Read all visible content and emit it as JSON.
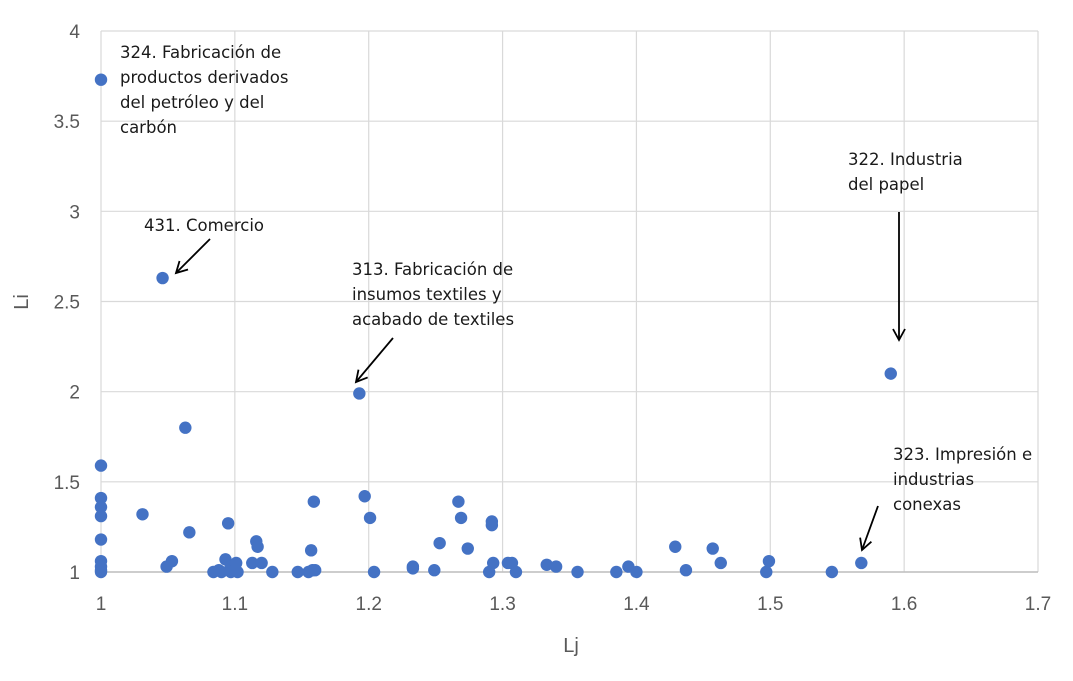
{
  "chart_data": {
    "type": "scatter",
    "title": "",
    "xlabel": "Lj",
    "ylabel": "Li",
    "xlim": [
      1,
      1.7
    ],
    "ylim": [
      1,
      4
    ],
    "xticks": [
      "1",
      "1.1",
      "1.2",
      "1.3",
      "1.4",
      "1.5",
      "1.6",
      "1.7"
    ],
    "yticks": [
      "1",
      "1.5",
      "2",
      "2.5",
      "3",
      "3.5",
      "4"
    ],
    "grid": true,
    "marker_color": "#4472C4",
    "points": [
      {
        "x": 1.0,
        "y": 3.73
      },
      {
        "x": 1.046,
        "y": 2.63
      },
      {
        "x": 1.063,
        "y": 1.8
      },
      {
        "x": 1.193,
        "y": 1.99
      },
      {
        "x": 1.59,
        "y": 2.1
      },
      {
        "x": 1.0,
        "y": 1.59
      },
      {
        "x": 1.0,
        "y": 1.41
      },
      {
        "x": 1.0,
        "y": 1.36
      },
      {
        "x": 1.0,
        "y": 1.31
      },
      {
        "x": 1.0,
        "y": 1.18
      },
      {
        "x": 1.0,
        "y": 1.06
      },
      {
        "x": 1.0,
        "y": 1.03
      },
      {
        "x": 1.0,
        "y": 1.01
      },
      {
        "x": 1.0,
        "y": 1.0
      },
      {
        "x": 1.031,
        "y": 1.32
      },
      {
        "x": 1.049,
        "y": 1.03
      },
      {
        "x": 1.053,
        "y": 1.06
      },
      {
        "x": 1.066,
        "y": 1.22
      },
      {
        "x": 1.084,
        "y": 1.0
      },
      {
        "x": 1.088,
        "y": 1.01
      },
      {
        "x": 1.09,
        "y": 1.0
      },
      {
        "x": 1.093,
        "y": 1.07
      },
      {
        "x": 1.095,
        "y": 1.27
      },
      {
        "x": 1.097,
        "y": 1.03
      },
      {
        "x": 1.097,
        "y": 1.0
      },
      {
        "x": 1.1,
        "y": 1.01
      },
      {
        "x": 1.101,
        "y": 1.05
      },
      {
        "x": 1.102,
        "y": 1.0
      },
      {
        "x": 1.113,
        "y": 1.05
      },
      {
        "x": 1.116,
        "y": 1.17
      },
      {
        "x": 1.117,
        "y": 1.14
      },
      {
        "x": 1.12,
        "y": 1.05
      },
      {
        "x": 1.128,
        "y": 1.0
      },
      {
        "x": 1.147,
        "y": 1.0
      },
      {
        "x": 1.155,
        "y": 1.0
      },
      {
        "x": 1.157,
        "y": 1.12
      },
      {
        "x": 1.158,
        "y": 1.01
      },
      {
        "x": 1.159,
        "y": 1.39
      },
      {
        "x": 1.16,
        "y": 1.01
      },
      {
        "x": 1.197,
        "y": 1.42
      },
      {
        "x": 1.201,
        "y": 1.3
      },
      {
        "x": 1.204,
        "y": 1.0
      },
      {
        "x": 1.233,
        "y": 1.03
      },
      {
        "x": 1.233,
        "y": 1.02
      },
      {
        "x": 1.249,
        "y": 1.01
      },
      {
        "x": 1.253,
        "y": 1.16
      },
      {
        "x": 1.267,
        "y": 1.39
      },
      {
        "x": 1.269,
        "y": 1.3
      },
      {
        "x": 1.274,
        "y": 1.13
      },
      {
        "x": 1.29,
        "y": 1.0
      },
      {
        "x": 1.292,
        "y": 1.28
      },
      {
        "x": 1.292,
        "y": 1.26
      },
      {
        "x": 1.293,
        "y": 1.05
      },
      {
        "x": 1.304,
        "y": 1.05
      },
      {
        "x": 1.307,
        "y": 1.05
      },
      {
        "x": 1.31,
        "y": 1.0
      },
      {
        "x": 1.333,
        "y": 1.04
      },
      {
        "x": 1.34,
        "y": 1.03
      },
      {
        "x": 1.356,
        "y": 1.0
      },
      {
        "x": 1.385,
        "y": 1.0
      },
      {
        "x": 1.394,
        "y": 1.03
      },
      {
        "x": 1.4,
        "y": 1.0
      },
      {
        "x": 1.429,
        "y": 1.14
      },
      {
        "x": 1.437,
        "y": 1.01
      },
      {
        "x": 1.457,
        "y": 1.13
      },
      {
        "x": 1.463,
        "y": 1.05
      },
      {
        "x": 1.497,
        "y": 1.0
      },
      {
        "x": 1.499,
        "y": 1.06
      },
      {
        "x": 1.546,
        "y": 1.0
      },
      {
        "x": 1.568,
        "y": 1.05
      }
    ],
    "annotations": [
      {
        "lines": [
          "324. Fabricación de",
          "productos derivados",
          "del petróleo y del",
          "carbón"
        ]
      },
      {
        "lines": [
          "431. Comercio"
        ]
      },
      {
        "lines": [
          "313. Fabricación de",
          "insumos textiles y",
          "acabado de textiles"
        ]
      },
      {
        "lines": [
          "322. Industria",
          "del papel"
        ]
      },
      {
        "lines": [
          "323. Impresión e",
          "industrias",
          "conexas"
        ]
      }
    ]
  }
}
